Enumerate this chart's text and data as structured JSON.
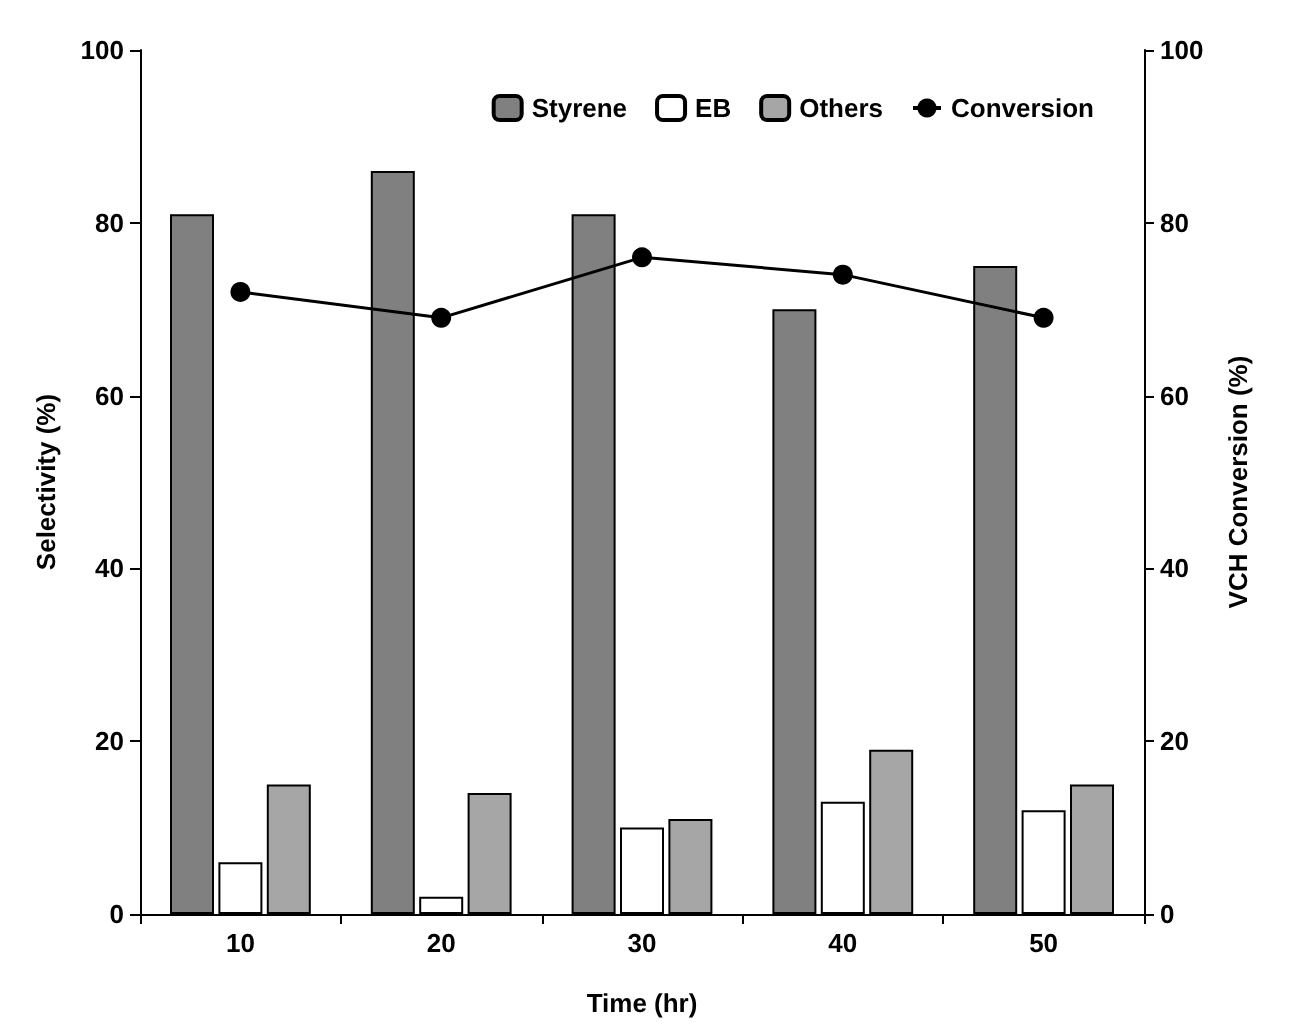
{
  "chart_data": {
    "type": "bar",
    "xlabel": "Time (hr)",
    "ylabel": "Selectivity (%)",
    "y2label": "VCH Conversion (%)",
    "categories": [
      "10",
      "20",
      "30",
      "40",
      "50"
    ],
    "series": [
      {
        "name": "Styrene",
        "color": "#808080",
        "values": [
          81,
          86,
          81,
          70,
          75
        ]
      },
      {
        "name": "EB",
        "color": "#ffffff",
        "values": [
          6,
          2,
          10,
          13,
          12
        ]
      },
      {
        "name": "Others",
        "color": "#a6a6a6",
        "values": [
          15,
          14,
          11,
          19,
          15
        ]
      },
      {
        "name": "Conversion",
        "type": "line",
        "axis": "y2",
        "color": "#000000",
        "marker": "circle",
        "line_style": "solid",
        "values": [
          72,
          69,
          76,
          74,
          69
        ]
      }
    ],
    "ylim": [
      0,
      100
    ],
    "yticks": [
      0,
      20,
      40,
      60,
      80,
      100
    ],
    "y2lim": [
      0,
      100
    ],
    "y2ticks": [
      0,
      20,
      40,
      60,
      80,
      100
    ],
    "grid": false,
    "legend": "top right"
  }
}
